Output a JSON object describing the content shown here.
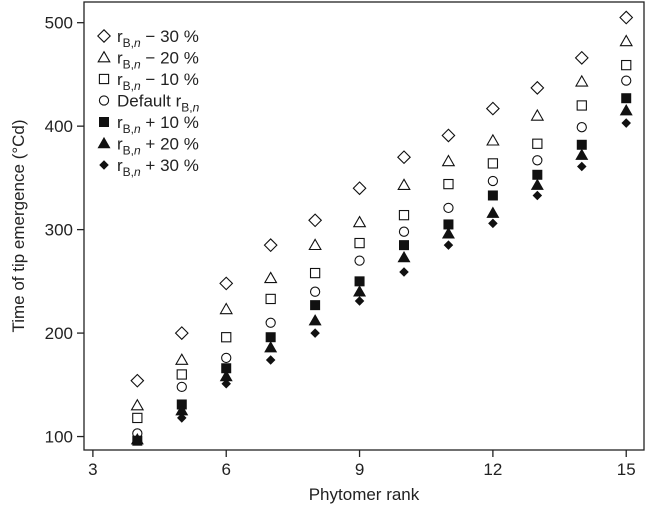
{
  "chart_data": {
    "type": "scatter",
    "xlabel": "Phytomer rank",
    "ylabel": "Time of tip emergence (°Cd)",
    "xlim": [
      2.8,
      15.4
    ],
    "ylim": [
      87,
      520
    ],
    "xticks": [
      3,
      6,
      9,
      12,
      15
    ],
    "yticks": [
      100,
      200,
      300,
      400,
      500
    ],
    "x": [
      4,
      5,
      6,
      7,
      8,
      9,
      10,
      11,
      12,
      13,
      14,
      15
    ],
    "legend_position": "top-left",
    "series": [
      {
        "name_parts": {
          "pre": "r",
          "sub": "B,",
          "subi": "n",
          "post": " − 30 %"
        },
        "marker": "diamond-open",
        "values": [
          154,
          200,
          248,
          285,
          309,
          340,
          370,
          391,
          417,
          437,
          466,
          505
        ]
      },
      {
        "name_parts": {
          "pre": "r",
          "sub": "B,",
          "subi": "n",
          "post": " − 20 %"
        },
        "marker": "triangle-open",
        "values": [
          130,
          174,
          223,
          253,
          285,
          307,
          343,
          366,
          386,
          410,
          443,
          482
        ]
      },
      {
        "name_parts": {
          "pre": "r",
          "sub": "B,",
          "subi": "n",
          "post": " − 10 %"
        },
        "marker": "square-open",
        "values": [
          118,
          160,
          196,
          233,
          258,
          287,
          314,
          344,
          364,
          383,
          420,
          459
        ]
      },
      {
        "name_parts": {
          "pre": "Default r",
          "sub": "B,",
          "subi": "n",
          "post": ""
        },
        "marker": "circle-open",
        "values": [
          103,
          148,
          176,
          210,
          240,
          270,
          298,
          321,
          347,
          367,
          399,
          444
        ]
      },
      {
        "name_parts": {
          "pre": "r",
          "sub": "B,",
          "subi": "n",
          "post": " + 10 %"
        },
        "marker": "square-filled",
        "values": [
          96,
          131,
          166,
          196,
          227,
          250,
          285,
          305,
          333,
          353,
          382,
          427
        ]
      },
      {
        "name_parts": {
          "pre": "r",
          "sub": "B,",
          "subi": "n",
          "post": " + 20 %"
        },
        "marker": "triangle-filled",
        "values": [
          97,
          125,
          158,
          186,
          212,
          240,
          273,
          296,
          316,
          343,
          372,
          415
        ]
      },
      {
        "name_parts": {
          "pre": "r",
          "sub": "B,",
          "subi": "n",
          "post": " + 30 %"
        },
        "marker": "diamond-filled",
        "values": [
          96,
          118,
          151,
          174,
          200,
          231,
          259,
          285,
          306,
          333,
          361,
          403
        ]
      }
    ]
  }
}
